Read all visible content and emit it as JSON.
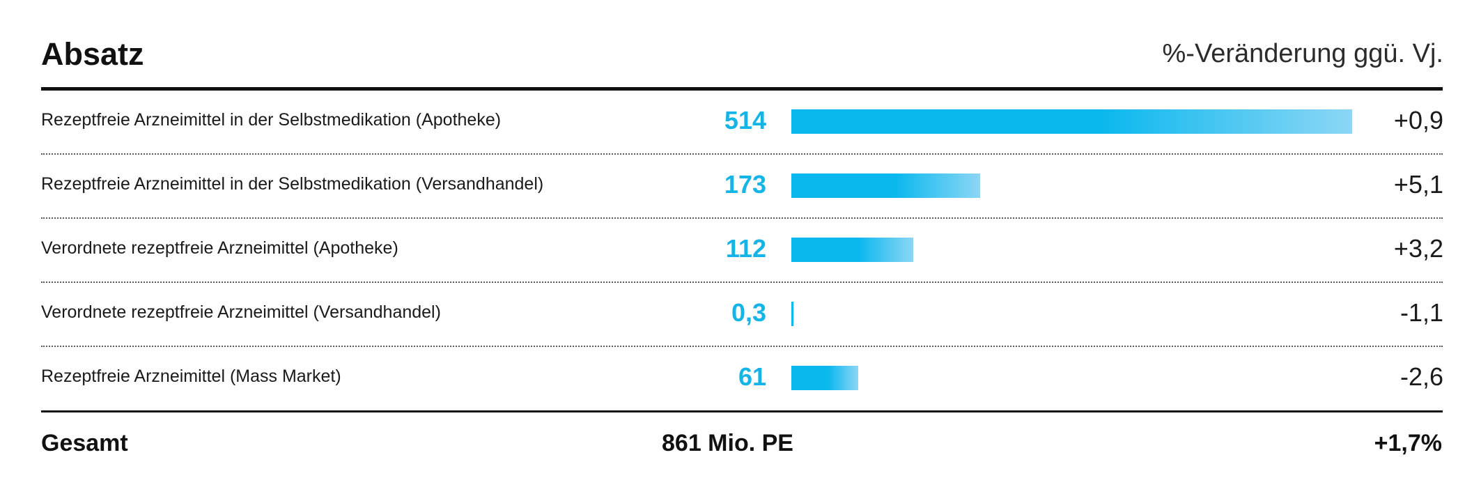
{
  "chart_data": {
    "type": "bar",
    "title": "Absatz",
    "change_header": "%-Veränderung ggü. Vj.",
    "categories": [
      "Rezeptfreie Arzneimittel in der Selbstmedikation (Apotheke)",
      "Rezeptfreie Arzneimittel in der Selbstmedikation (Versandhandel)",
      "Verordnete rezeptfreie Arzneimittel (Apotheke)",
      "Verordnete rezeptfreie Arzneimittel (Versandhandel)",
      "Rezeptfreie Arzneimittel (Mass Market)"
    ],
    "values": [
      514,
      173,
      112,
      0.3,
      61
    ],
    "value_labels": [
      "514",
      "173",
      "112",
      "0,3",
      "61"
    ],
    "changes": [
      "+0,9",
      "+5,1",
      "+3,2",
      "-1,1",
      "-2,6"
    ],
    "xlim": [
      0,
      514
    ],
    "orientation": "horizontal",
    "total": {
      "label": "Gesamt",
      "value": "861 Mio. PE",
      "change": "+1,7%"
    },
    "colors": {
      "bar": "#0ab8ee",
      "bar_light": "#8cd6f5",
      "value_text": "#14b4e6"
    }
  }
}
